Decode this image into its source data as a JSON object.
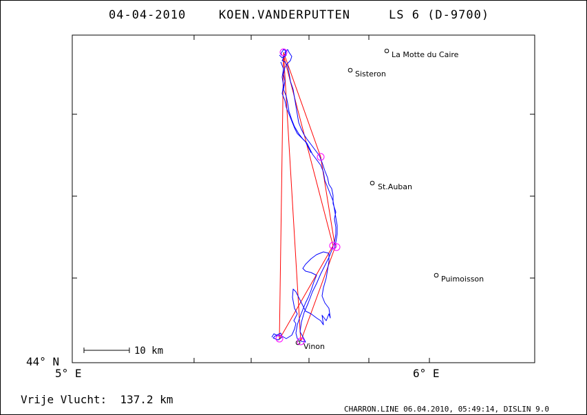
{
  "header": {
    "date": "04-04-2010",
    "pilot": "KOEN.VANDERPUTTEN",
    "glider": "LS 6 (D-9700)"
  },
  "axes": {
    "lat_label": "44° N",
    "lon_labels": [
      "5° E",
      "6° E"
    ]
  },
  "scale_bar": {
    "label": "10 km"
  },
  "towns": [
    {
      "name": "La Motte du Caire"
    },
    {
      "name": "Sisteron"
    },
    {
      "name": "St.Auban"
    },
    {
      "name": "Puimoisson"
    },
    {
      "name": "Vinon"
    }
  ],
  "footer": {
    "distance": "Vrije Vlucht:  137.2 km",
    "credit": "CHARRON.LINE 06.04.2010, 05:49:14, DISLIN 9.0"
  },
  "colors": {
    "frame": "#000000",
    "track": "#0000ff",
    "task_line": "#ff0000",
    "turnpoint": "#ff00ff"
  }
}
